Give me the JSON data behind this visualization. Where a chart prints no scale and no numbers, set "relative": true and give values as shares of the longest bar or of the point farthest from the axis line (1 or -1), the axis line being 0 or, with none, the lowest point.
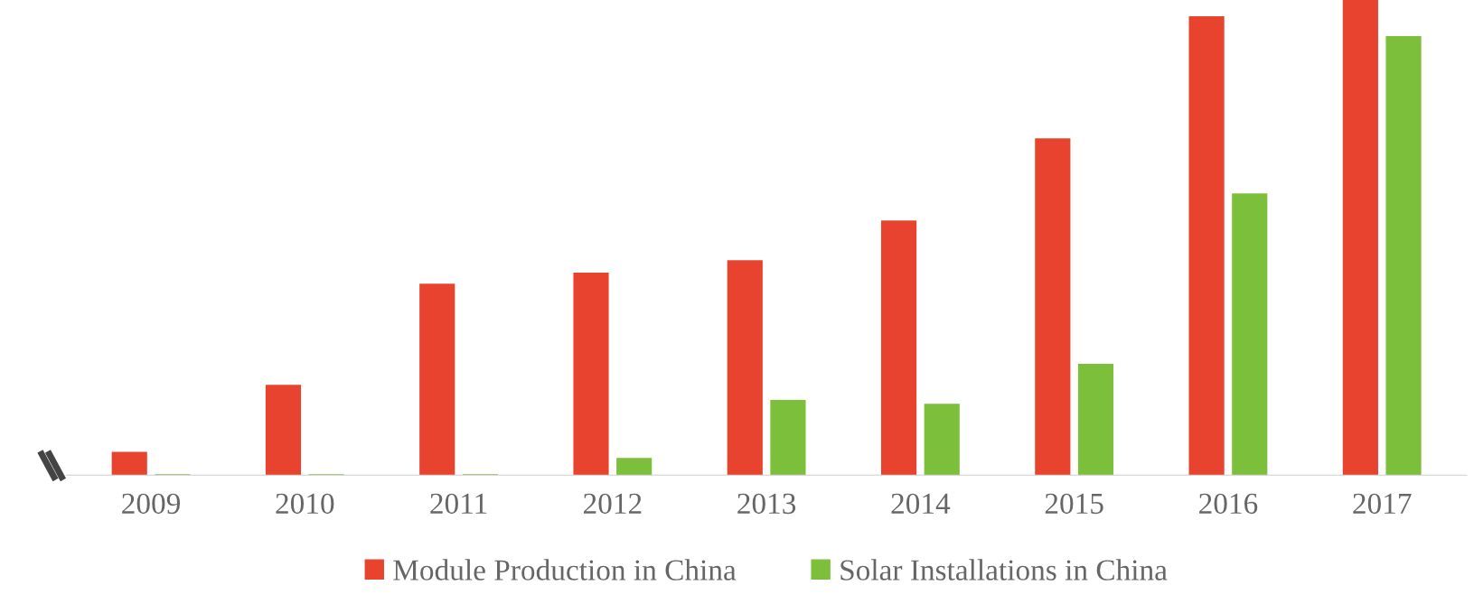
{
  "chart_data": {
    "type": "bar",
    "relative": true,
    "legend": "bottom",
    "grid": false,
    "categories": [
      "2009",
      "2010",
      "2011",
      "2012",
      "2013",
      "2014",
      "2015",
      "2016",
      "2017"
    ],
    "series": [
      {
        "name": "Module Production in China",
        "color": "#e8432e",
        "values": [
          0.049,
          0.19,
          0.403,
          0.426,
          0.452,
          0.536,
          0.709,
          0.966,
          1
        ]
      },
      {
        "name": "Solar Installations in China",
        "color": "#7cbf3b",
        "values": [
          0.002,
          0.002,
          0.002,
          0.036,
          0.158,
          0.15,
          0.234,
          0.593,
          0.924
        ]
      }
    ]
  }
}
